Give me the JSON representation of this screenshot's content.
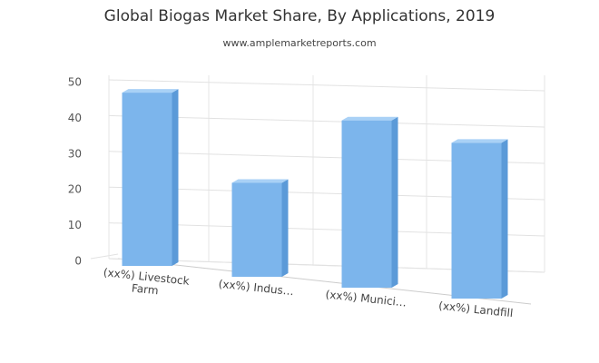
{
  "chart_data": {
    "type": "bar3d",
    "title": "Global Biogas Market Share, By Applications, 2019",
    "subtitle": "www.amplemarketreports.com",
    "categories": [
      "(xx%) Livestock Farm",
      "(xx%) Indus…",
      "(xx%) Munici…",
      "(xx%) Landfill"
    ],
    "values": [
      46,
      23,
      38,
      33
    ],
    "color": "#7cb5ec",
    "ylim": [
      0,
      50
    ],
    "yticks": [
      0,
      10,
      20,
      30,
      40,
      50
    ],
    "grid": true
  }
}
